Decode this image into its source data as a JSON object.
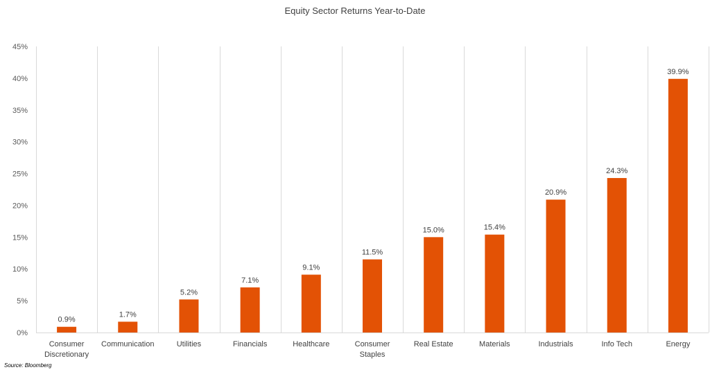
{
  "chart_data": {
    "type": "bar",
    "title": "Equity Sector Returns Year-to-Date",
    "categories": [
      [
        "Consumer",
        "Discretionary"
      ],
      [
        "Communication"
      ],
      [
        "Utilities"
      ],
      [
        "Financials"
      ],
      [
        "Healthcare"
      ],
      [
        "Consumer",
        "Staples"
      ],
      [
        "Real Estate"
      ],
      [
        "Materials"
      ],
      [
        "Industrials"
      ],
      [
        "Info Tech"
      ],
      [
        "Energy"
      ]
    ],
    "values": [
      0.9,
      1.7,
      5.2,
      7.1,
      9.1,
      11.5,
      15.0,
      15.4,
      20.9,
      24.3,
      39.9
    ],
    "data_labels": [
      "0.9%",
      "1.7%",
      "5.2%",
      "7.1%",
      "9.1%",
      "11.5%",
      "15.0%",
      "15.4%",
      "20.9%",
      "24.3%",
      "39.9%"
    ],
    "y_ticks": [
      0,
      5,
      10,
      15,
      20,
      25,
      30,
      35,
      40,
      45
    ],
    "y_tick_labels": [
      "0%",
      "5%",
      "10%",
      "15%",
      "20%",
      "25%",
      "30%",
      "35%",
      "40%",
      "45%"
    ],
    "ylim": [
      0,
      45
    ],
    "xlabel": "",
    "ylabel": "",
    "grid": "vertical category separators",
    "legend": "none",
    "bar_color": "#E35205",
    "gridline_color": "#D9D9D9"
  },
  "footer": {
    "source": "Source: Bloomberg"
  }
}
